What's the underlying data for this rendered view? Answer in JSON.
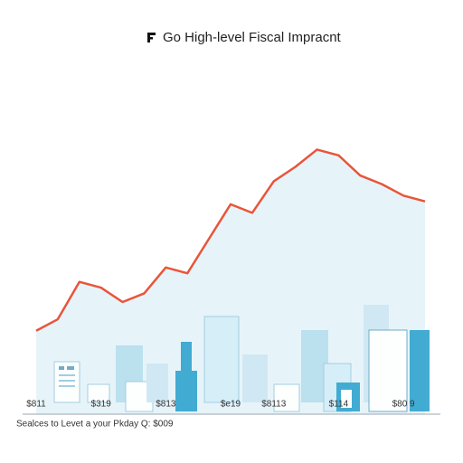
{
  "chart_data": {
    "type": "line",
    "title": "Go High-level Fiscal Impracnt",
    "categories": [
      "$811",
      null,
      null,
      "$319",
      null,
      null,
      "$813",
      null,
      null,
      "$e19",
      null,
      "$8113",
      null,
      null,
      "$114",
      null,
      null,
      "$80 9",
      null
    ],
    "series": [
      {
        "name": null,
        "color": "#e8553a",
        "values": [
          29,
          33,
          46,
          44,
          39,
          42,
          51,
          49,
          61,
          73,
          70,
          81,
          86,
          92,
          90,
          83,
          80,
          76,
          74
        ]
      }
    ],
    "ylim": [
      0,
      100
    ],
    "footer": "Sealces to Levet a your Pkday Q: $009"
  }
}
